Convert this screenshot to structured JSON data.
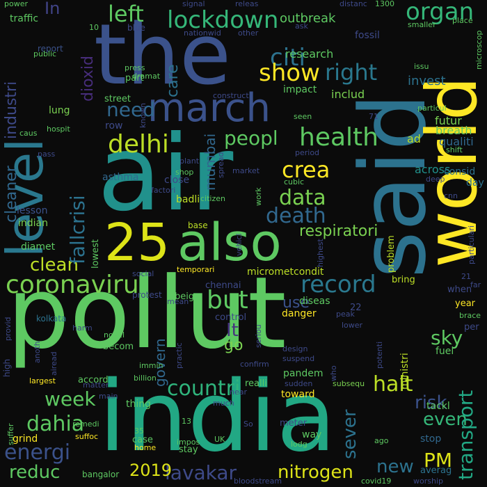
{
  "words": [
    {
      "text": "pollut",
      "color": "#5ec962"
    },
    {
      "text": "air",
      "color": "#21918c"
    },
    {
      "text": "india",
      "color": "#22a884"
    },
    {
      "text": "said",
      "color": "#2c728e"
    },
    {
      "text": "the",
      "color": "#3b528b"
    },
    {
      "text": "world",
      "color": "#fde725"
    },
    {
      "text": "level",
      "color": "#2a788e"
    },
    {
      "text": "also",
      "color": "#5ec962"
    },
    {
      "text": "25",
      "color": "#dde318"
    },
    {
      "text": "march",
      "color": "#3b528b"
    },
    {
      "text": "lockdown",
      "color": "#35b779"
    },
    {
      "text": "coronaviru",
      "color": "#7ad151"
    },
    {
      "text": "health",
      "color": "#5ec962"
    },
    {
      "text": "delhi",
      "color": "#bddf26"
    },
    {
      "text": "record",
      "color": "#2a788e"
    },
    {
      "text": "but",
      "color": "#5ec962"
    },
    {
      "text": "citi",
      "color": "#2c728e"
    },
    {
      "text": "organ",
      "color": "#35b779"
    },
    {
      "text": "show",
      "color": "#fde725"
    },
    {
      "text": "right",
      "color": "#2a788e"
    },
    {
      "text": "left",
      "color": "#5ec962"
    },
    {
      "text": "need",
      "color": "#31688e"
    },
    {
      "text": "peopl",
      "color": "#5ec962"
    },
    {
      "text": "crea",
      "color": "#fde725"
    },
    {
      "text": "data",
      "color": "#7ad151"
    },
    {
      "text": "death",
      "color": "#31688e"
    },
    {
      "text": "clean",
      "color": "#bddf26"
    },
    {
      "text": "countri",
      "color": "#2fb47c"
    },
    {
      "text": "week",
      "color": "#5ec962"
    },
    {
      "text": "dahia",
      "color": "#5ec962"
    },
    {
      "text": "energi",
      "color": "#3b528b"
    },
    {
      "text": "halt",
      "color": "#bddf26"
    },
    {
      "text": "sky",
      "color": "#5ec962"
    },
    {
      "text": "lavakar",
      "color": "#3e4a89"
    },
    {
      "text": "nitrogen",
      "color": "#dde318"
    },
    {
      "text": "new",
      "color": "#2c728e"
    },
    {
      "text": "PM",
      "color": "#dde318"
    },
    {
      "text": "reduc",
      "color": "#5ec962"
    },
    {
      "text": "2019",
      "color": "#dde318"
    },
    {
      "text": "risk",
      "color": "#3b528b"
    },
    {
      "text": "even",
      "color": "#35b779"
    },
    {
      "text": "transport",
      "color": "#22a884"
    },
    {
      "text": "fallcrisi",
      "color": "#2c728e"
    },
    {
      "text": "cleaner",
      "color": "#31688e"
    },
    {
      "text": "industri",
      "color": "#3e4a89"
    },
    {
      "text": "In",
      "color": "#414487"
    },
    {
      "text": "dioxid",
      "color": "#472d7b"
    },
    {
      "text": "care",
      "color": "#2c728e"
    },
    {
      "text": "mumbai",
      "color": "#31688e"
    },
    {
      "text": "It",
      "color": "#46337e"
    },
    {
      "text": "go",
      "color": "#7ad151"
    },
    {
      "text": "use",
      "color": "#3b528b"
    },
    {
      "text": "sever",
      "color": "#2c728e"
    },
    {
      "text": "govern",
      "color": "#31688e"
    },
    {
      "text": "respiratori",
      "color": "#7ad151"
    },
    {
      "text": "invest",
      "color": "#2c728e"
    },
    {
      "text": "futur",
      "color": "#7ad151"
    },
    {
      "text": "breath",
      "color": "#5ec962"
    },
    {
      "text": "qualiti",
      "color": "#31688e"
    },
    {
      "text": "ad",
      "color": "#bddf26"
    },
    {
      "text": "across",
      "color": "#21918c"
    },
    {
      "text": "consid",
      "color": "#2c728e"
    },
    {
      "text": "day",
      "color": "#2c728e"
    },
    {
      "text": "outbreak",
      "color": "#5ec962"
    },
    {
      "text": "research",
      "color": "#5ec962"
    },
    {
      "text": "includ",
      "color": "#7ad151"
    },
    {
      "text": "impact",
      "color": "#5ec962"
    },
    {
      "text": "fossil",
      "color": "#3e4a89"
    },
    {
      "text": "traffic",
      "color": "#5ec962"
    },
    {
      "text": "report",
      "color": "#3b528b"
    },
    {
      "text": "public",
      "color": "#5ec962"
    },
    {
      "text": "part",
      "color": "#5ec962"
    },
    {
      "text": "press",
      "color": "#5ec962"
    },
    {
      "text": "street",
      "color": "#5ec962"
    },
    {
      "text": "lung",
      "color": "#7ad151"
    },
    {
      "text": "row",
      "color": "#3e4a89"
    },
    {
      "text": "caus",
      "color": "#5ec962"
    },
    {
      "text": "hospit",
      "color": "#5ec962"
    },
    {
      "text": "pass",
      "color": "#3e4a89"
    },
    {
      "text": "asthma",
      "color": "#31688e"
    },
    {
      "text": "lesson",
      "color": "#3b528b"
    },
    {
      "text": "indian",
      "color": "#7ad151"
    },
    {
      "text": "diamet",
      "color": "#5ec962"
    },
    {
      "text": "lowest",
      "color": "#5ec962"
    },
    {
      "text": "close",
      "color": "#3e4a89"
    },
    {
      "text": "badli",
      "color": "#bddf26"
    },
    {
      "text": "citizen",
      "color": "#5ec962"
    },
    {
      "text": "factori",
      "color": "#3e4a89"
    },
    {
      "text": "base",
      "color": "#bddf26"
    },
    {
      "text": "micromet",
      "color": "#bddf26"
    },
    {
      "text": "condit",
      "color": "#bddf26"
    },
    {
      "text": "problem",
      "color": "#bddf26"
    },
    {
      "text": "bring",
      "color": "#bddf26"
    },
    {
      "text": "temporari",
      "color": "#fde725"
    },
    {
      "text": "chennai",
      "color": "#3e4a89"
    },
    {
      "text": "protest",
      "color": "#3e4a89"
    },
    {
      "text": "beig",
      "color": "#5ec962"
    },
    {
      "text": "control",
      "color": "#3e4a89"
    },
    {
      "text": "diseas",
      "color": "#5ec962"
    },
    {
      "text": "danger",
      "color": "#fde725"
    },
    {
      "text": "pandem",
      "color": "#5ec962"
    },
    {
      "text": "ministri",
      "color": "#bddf26"
    },
    {
      "text": "fuel",
      "color": "#5ec962"
    },
    {
      "text": "year",
      "color": "#fde725"
    },
    {
      "text": "when",
      "color": "#3e4a89"
    },
    {
      "text": "per",
      "color": "#3e4a89"
    },
    {
      "text": "kolkata",
      "color": "#2c728e"
    },
    {
      "text": "accord",
      "color": "#5ec962"
    },
    {
      "text": "becom",
      "color": "#5ec962"
    },
    {
      "text": "novel",
      "color": "#5ec962"
    },
    {
      "text": "realli",
      "color": "#5ec962"
    },
    {
      "text": "toward",
      "color": "#fde725"
    },
    {
      "text": "thing",
      "color": "#5ec962"
    },
    {
      "text": "grind",
      "color": "#fde725"
    },
    {
      "text": "case",
      "color": "#5ec962"
    },
    {
      "text": "home",
      "color": "#fde725"
    },
    {
      "text": "stay",
      "color": "#5ec962"
    },
    {
      "text": "way",
      "color": "#5ec962"
    },
    {
      "text": "meter",
      "color": "#3e4a89"
    },
    {
      "text": "stop",
      "color": "#31688e"
    },
    {
      "text": "tackl",
      "color": "#5ec962"
    },
    {
      "text": "averag",
      "color": "#2c728e"
    },
    {
      "text": "bangalor",
      "color": "#5ec962"
    },
    {
      "text": "bloodstream",
      "color": "#3e4a89"
    },
    {
      "text": "covid19",
      "color": "#5ec962"
    },
    {
      "text": "worship",
      "color": "#3e4a89"
    },
    {
      "text": "lodg",
      "color": "#5ec962"
    },
    {
      "text": "sudden",
      "color": "#3e4a89"
    },
    {
      "text": "subsequ",
      "color": "#7ad151"
    },
    {
      "text": "suffoc",
      "color": "#fde725"
    },
    {
      "text": "remedi",
      "color": "#5ec962"
    },
    {
      "text": "impos",
      "color": "#5ec962"
    },
    {
      "text": "UK",
      "color": "#5ec962"
    },
    {
      "text": "13",
      "color": "#5ec962"
    },
    {
      "text": "35",
      "color": "#5ec962"
    },
    {
      "text": "So",
      "color": "#3e4a89"
    },
    {
      "text": "ago",
      "color": "#5ec962"
    },
    {
      "text": "suffer",
      "color": "#5ec962"
    },
    {
      "text": "largest",
      "color": "#fde725"
    },
    {
      "text": "matter",
      "color": "#3e4a89"
    },
    {
      "text": "main",
      "color": "#3e4a89"
    },
    {
      "text": "billion",
      "color": "#5ec962"
    },
    {
      "text": "much",
      "color": "#3e4a89"
    },
    {
      "text": "near",
      "color": "#3e4a89"
    },
    {
      "text": "22",
      "color": "#3e4a89"
    },
    {
      "text": "who",
      "color": "#3e4a89"
    },
    {
      "text": "potenti",
      "color": "#3e4a89"
    },
    {
      "text": "peak",
      "color": "#3e4a89"
    },
    {
      "text": "lower",
      "color": "#3e4a89"
    },
    {
      "text": "design",
      "color": "#3e4a89"
    },
    {
      "text": "suspend",
      "color": "#3e4a89"
    },
    {
      "text": "confirm",
      "color": "#3e4a89"
    },
    {
      "text": "seriou",
      "color": "#3e4a89"
    },
    {
      "text": "anoth",
      "color": "#3e4a89"
    },
    {
      "text": "airead",
      "color": "#3e4a89"
    },
    {
      "text": "practic",
      "color": "#3e4a89"
    },
    {
      "text": "immin",
      "color": "#5ec962"
    },
    {
      "text": "high",
      "color": "#3e4a89"
    },
    {
      "text": "provid",
      "color": "#3e4a89"
    },
    {
      "text": "harm",
      "color": "#3e4a89"
    },
    {
      "text": "mean",
      "color": "#3e4a89"
    },
    {
      "text": "social",
      "color": "#3e4a89"
    },
    {
      "text": "vehicl",
      "color": "#3e4a89"
    },
    {
      "text": "highest",
      "color": "#3e4a89"
    },
    {
      "text": "work",
      "color": "#5ec962"
    },
    {
      "text": "spread",
      "color": "#3e4a89"
    },
    {
      "text": "shop",
      "color": "#5ec962"
    },
    {
      "text": "plant",
      "color": "#3e4a89"
    },
    {
      "text": "market",
      "color": "#3e4a89"
    },
    {
      "text": "known",
      "color": "#3e4a89"
    },
    {
      "text": "construct",
      "color": "#3e4a89"
    },
    {
      "text": "dramat",
      "color": "#5ec962"
    },
    {
      "text": "nationwid",
      "color": "#3e4a89"
    },
    {
      "text": "other",
      "color": "#3e4a89"
    },
    {
      "text": "signal",
      "color": "#3e4a89"
    },
    {
      "text": "releas",
      "color": "#3e4a89"
    },
    {
      "text": "ask",
      "color": "#3e4a89"
    },
    {
      "text": "distanc",
      "color": "#3e4a89"
    },
    {
      "text": "1300",
      "color": "#5ec962"
    },
    {
      "text": "smaller",
      "color": "#5ec962"
    },
    {
      "text": "place",
      "color": "#5ec962"
    },
    {
      "text": "microscop",
      "color": "#5ec962"
    },
    {
      "text": "power",
      "color": "#5ec962"
    },
    {
      "text": "blue",
      "color": "#3e4a89"
    },
    {
      "text": "10",
      "color": "#5ec962"
    },
    {
      "text": "issu",
      "color": "#5ec962"
    },
    {
      "text": "seen",
      "color": "#5ec962"
    },
    {
      "text": "71",
      "color": "#3e4a89"
    },
    {
      "text": "period",
      "color": "#3e4a89"
    },
    {
      "text": "particul",
      "color": "#5ec962"
    },
    {
      "text": "shift",
      "color": "#5ec962"
    },
    {
      "text": "deep",
      "color": "#3e4a89"
    },
    {
      "text": "cubic",
      "color": "#5ec962"
    },
    {
      "text": "cnn",
      "color": "#3e4a89"
    },
    {
      "text": "particulari",
      "color": "#3e4a89"
    },
    {
      "text": "far",
      "color": "#3e4a89"
    },
    {
      "text": "21",
      "color": "#3e4a89"
    },
    {
      "text": "brace",
      "color": "#5ec962"
    }
  ]
}
